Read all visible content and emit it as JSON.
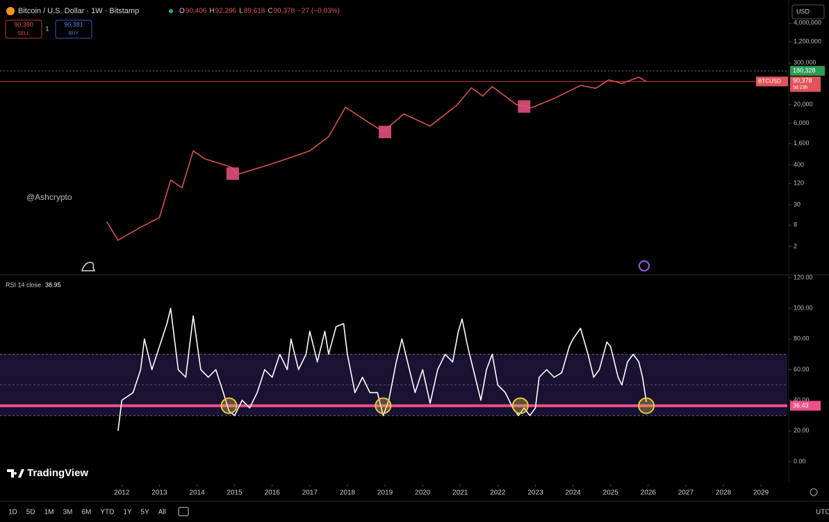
{
  "header": {
    "title": "Bitcoin / U.S. Dollar · 1W · Bitstamp",
    "ohlc": [
      {
        "key": "O",
        "value": "90,406"
      },
      {
        "key": "H",
        "value": "92,296"
      },
      {
        "key": "L",
        "value": "89,618"
      },
      {
        "key": "C",
        "value": "90,378"
      }
    ],
    "change": "−27 (−0.03%)",
    "sell": {
      "price": "90,380",
      "label": "SELL"
    },
    "spread": "1",
    "buy": {
      "price": "90,381",
      "label": "BUY"
    },
    "currency": "USD"
  },
  "watermark": "@Ashcrypto",
  "logo": "TradingView",
  "toolbar": {
    "ranges": [
      "1D",
      "5D",
      "1M",
      "3M",
      "6M",
      "YTD",
      "1Y",
      "5Y",
      "All"
    ],
    "timezone": "UTC"
  },
  "chart_data": [
    {
      "type": "line",
      "log_scale": true,
      "color": "#d9534a",
      "x": [
        2011.6,
        2011.9,
        2012.5,
        2013.0,
        2013.3,
        2013.6,
        2013.9,
        2014.2,
        2014.9,
        2015.1,
        2015.9,
        2016.5,
        2017.0,
        2017.5,
        2017.95,
        2018.5,
        2018.95,
        2019.5,
        2020.2,
        2020.9,
        2021.3,
        2021.6,
        2021.85,
        2022.5,
        2022.9,
        2023.5,
        2024.2,
        2024.6,
        2024.95,
        2025.3,
        2025.75,
        2025.95
      ],
      "values": [
        10,
        3,
        7,
        13,
        150,
        90,
        1000,
        600,
        350,
        220,
        400,
        650,
        1000,
        2500,
        17000,
        7000,
        3500,
        11000,
        5000,
        19000,
        60000,
        35000,
        65000,
        20000,
        16500,
        30000,
        70000,
        58000,
        100000,
        80000,
        120000,
        90378
      ],
      "markers": [
        {
          "x": 2014.95,
          "value": 227
        },
        {
          "x": 2019.0,
          "value": 3400
        },
        {
          "x": 2022.7,
          "value": 17800
        }
      ],
      "xlim": [
        2008.76,
        2029.7
      ],
      "ylim": [
        0.33,
        18000000
      ],
      "yticks": [
        {
          "value": 4000000,
          "label": "4,000,000"
        },
        {
          "value": 1200000,
          "label": "1,200,000"
        },
        {
          "value": 300000,
          "label": "300,000"
        },
        {
          "value": 20000,
          "label": "20,000"
        },
        {
          "value": 6000,
          "label": "6,000"
        },
        {
          "value": 1600,
          "label": "1,600"
        },
        400,
        120,
        30,
        8,
        2
      ],
      "high_line": {
        "value": 180328,
        "label": "180,328"
      },
      "last_price": {
        "value": 90378,
        "label": "90,378",
        "symbol": "BTCUSD",
        "countdown": "5d 23h"
      }
    },
    {
      "type": "line",
      "title": "RSI 14 close",
      "color": "#ffffff",
      "x": [
        2011.9,
        2012.0,
        2012.3,
        2012.5,
        2012.6,
        2012.8,
        2013.0,
        2013.2,
        2013.3,
        2013.5,
        2013.7,
        2013.9,
        2014.1,
        2014.3,
        2014.5,
        2014.7,
        2014.85,
        2015.0,
        2015.2,
        2015.4,
        2015.6,
        2015.8,
        2016.0,
        2016.2,
        2016.4,
        2016.5,
        2016.7,
        2016.9,
        2017.0,
        2017.2,
        2017.4,
        2017.5,
        2017.7,
        2017.9,
        2018.0,
        2018.2,
        2018.4,
        2018.6,
        2018.8,
        2018.95,
        2019.1,
        2019.3,
        2019.45,
        2019.6,
        2019.8,
        2020.0,
        2020.2,
        2020.4,
        2020.6,
        2020.8,
        2020.95,
        2021.05,
        2021.2,
        2021.4,
        2021.55,
        2021.7,
        2021.85,
        2022.0,
        2022.2,
        2022.4,
        2022.55,
        2022.7,
        2022.85,
        2023.0,
        2023.1,
        2023.3,
        2023.5,
        2023.7,
        2023.9,
        2024.0,
        2024.2,
        2024.4,
        2024.55,
        2024.7,
        2024.9,
        2025.0,
        2025.2,
        2025.3,
        2025.45,
        2025.6,
        2025.75,
        2025.85,
        2025.95
      ],
      "values": [
        20,
        40,
        45,
        60,
        80,
        60,
        75,
        90,
        100,
        60,
        55,
        95,
        60,
        55,
        60,
        45,
        33,
        30,
        40,
        35,
        45,
        60,
        55,
        70,
        60,
        80,
        60,
        70,
        85,
        65,
        85,
        70,
        88,
        90,
        70,
        45,
        55,
        45,
        45,
        30,
        40,
        65,
        80,
        65,
        45,
        60,
        38,
        60,
        70,
        65,
        85,
        93,
        75,
        55,
        40,
        60,
        70,
        50,
        45,
        35,
        30,
        35,
        30,
        35,
        55,
        60,
        55,
        58,
        75,
        80,
        87,
        70,
        55,
        60,
        78,
        75,
        55,
        50,
        65,
        70,
        65,
        55,
        38.95
      ],
      "band": [
        30,
        70
      ],
      "mid_line": 50,
      "support_line": 36.43,
      "highlight_x": [
        2014.85,
        2018.95,
        2022.6,
        2025.95
      ],
      "xlim": [
        2008.76,
        2029.7
      ],
      "ylim": [
        -13.6,
        120.9
      ],
      "yticks": [
        {
          "value": 120,
          "label": "120.00"
        },
        {
          "value": 100,
          "label": "100.00"
        },
        {
          "value": 80,
          "label": "80.00"
        },
        {
          "value": 60,
          "label": "60.00"
        },
        {
          "value": 40,
          "label": "40.00"
        },
        {
          "value": 20,
          "label": "20.00"
        },
        {
          "value": 0,
          "label": "0.00"
        }
      ],
      "xticks": [
        2012,
        2013,
        2014,
        2015,
        2016,
        2017,
        2018,
        2019,
        2020,
        2021,
        2022,
        2023,
        2024,
        2025,
        2026,
        2027,
        2028,
        2029
      ]
    }
  ]
}
